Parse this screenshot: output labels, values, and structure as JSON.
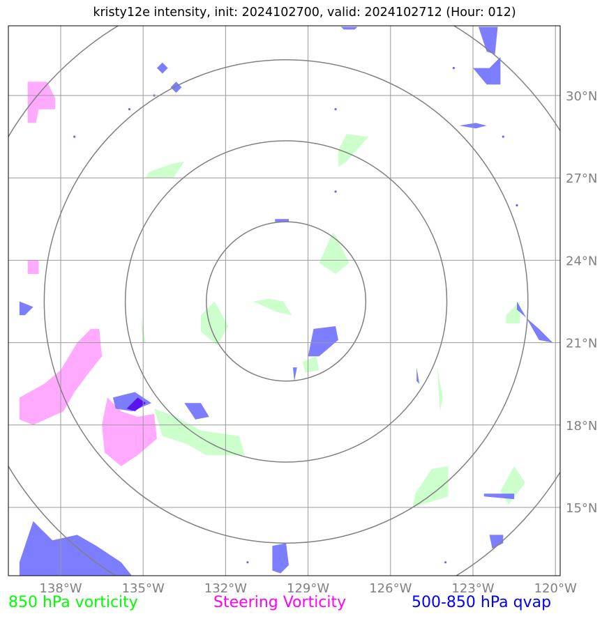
{
  "title": "kristy12e intensity, init: 2024102700, valid: 2024102712 (Hour: 012)",
  "colors": {
    "vorticity_850": "#ccffcc",
    "steering_vorticity": "#ffaaff",
    "qvap": "#6666ff",
    "qvap_dark": "#5500ee",
    "grid": "#999999",
    "range_ring": "#808080",
    "tick_label": "#808080"
  },
  "map": {
    "projection": "lat-lon",
    "lon_range": [
      -139.5,
      -120.0
    ],
    "lat_range": [
      12.5,
      32.5
    ],
    "gridlines": true,
    "lon_ticks": [
      {
        "value": -138,
        "label": "138°W"
      },
      {
        "value": -135,
        "label": "135°W"
      },
      {
        "value": -132,
        "label": "132°W"
      },
      {
        "value": -129,
        "label": "129°W"
      },
      {
        "value": -126,
        "label": "126°W"
      },
      {
        "value": -123,
        "label": "123°W"
      },
      {
        "value": -120,
        "label": "120°W"
      }
    ],
    "lat_ticks": [
      {
        "value": 30,
        "label": "30°N"
      },
      {
        "value": 27,
        "label": "27°N"
      },
      {
        "value": 24,
        "label": "24°N"
      },
      {
        "value": 21,
        "label": "21°N"
      },
      {
        "value": 18,
        "label": "18°N"
      },
      {
        "value": 15,
        "label": "15°N"
      }
    ],
    "storm_center": {
      "lon": -129.8,
      "lat": 22.5
    },
    "range_rings_deg": [
      2.9,
      5.85,
      8.8,
      11.75
    ],
    "vorticity_850_areas": [
      {
        "points": [
          [
            -134.8,
            27.2
          ],
          [
            -134.0,
            27.5
          ],
          [
            -133.5,
            27.6
          ],
          [
            -133.9,
            27.0
          ],
          [
            -134.9,
            27.0
          ]
        ]
      },
      {
        "points": [
          [
            -127.9,
            28.0
          ],
          [
            -127.6,
            28.6
          ],
          [
            -126.8,
            28.5
          ],
          [
            -127.6,
            27.6
          ],
          [
            -127.9,
            27.4
          ]
        ]
      },
      {
        "points": [
          [
            -128.6,
            23.9
          ],
          [
            -128.1,
            25.0
          ],
          [
            -128.0,
            24.9
          ],
          [
            -127.5,
            23.9
          ],
          [
            -128.0,
            23.5
          ]
        ]
      },
      {
        "points": [
          [
            -131.0,
            22.5
          ],
          [
            -130.4,
            22.6
          ],
          [
            -129.9,
            22.5
          ],
          [
            -129.6,
            22.0
          ],
          [
            -130.1,
            22.1
          ]
        ]
      },
      {
        "points": [
          [
            -132.9,
            22.0
          ],
          [
            -132.4,
            22.5
          ],
          [
            -131.9,
            21.6
          ],
          [
            -132.3,
            20.9
          ],
          [
            -132.9,
            21.4
          ]
        ]
      },
      {
        "points": [
          [
            -135.1,
            22.0
          ],
          [
            -135.0,
            21.0
          ],
          [
            -134.9,
            21.0
          ]
        ]
      },
      {
        "points": [
          [
            -129.2,
            20.3
          ],
          [
            -128.7,
            20.5
          ],
          [
            -128.6,
            20.0
          ],
          [
            -129.1,
            19.9
          ]
        ]
      },
      {
        "points": [
          [
            -134.6,
            18.6
          ],
          [
            -133.8,
            18.3
          ],
          [
            -132.9,
            17.8
          ],
          [
            -131.5,
            17.6
          ],
          [
            -131.3,
            16.9
          ],
          [
            -132.7,
            16.9
          ],
          [
            -133.4,
            17.3
          ],
          [
            -134.3,
            17.6
          ]
        ]
      },
      {
        "points": [
          [
            -124.3,
            20.1
          ],
          [
            -124.1,
            19.0
          ],
          [
            -124.2,
            18.5
          ]
        ]
      },
      {
        "points": [
          [
            -124.5,
            16.4
          ],
          [
            -123.9,
            16.5
          ],
          [
            -123.9,
            15.4
          ],
          [
            -125.2,
            15.0
          ],
          [
            -125.1,
            15.5
          ]
        ]
      },
      {
        "points": [
          [
            -122.0,
            15.6
          ],
          [
            -121.5,
            16.5
          ],
          [
            -121.1,
            15.9
          ],
          [
            -121.7,
            15.1
          ]
        ]
      },
      {
        "points": [
          [
            -121.8,
            22.0
          ],
          [
            -121.3,
            22.5
          ],
          [
            -121.3,
            21.7
          ],
          [
            -121.8,
            21.7
          ]
        ]
      }
    ],
    "steering_vorticity_areas": [
      {
        "points": [
          [
            -139.2,
            30.5
          ],
          [
            -138.5,
            30.5
          ],
          [
            -138.2,
            29.9
          ],
          [
            -138.2,
            29.5
          ],
          [
            -138.8,
            29.5
          ],
          [
            -138.9,
            29.0
          ],
          [
            -139.2,
            29.0
          ]
        ]
      },
      {
        "points": [
          [
            -139.2,
            24.0
          ],
          [
            -138.8,
            24.0
          ],
          [
            -138.8,
            23.5
          ],
          [
            -139.2,
            23.5
          ]
        ]
      },
      {
        "points": [
          [
            -139.5,
            19.0
          ],
          [
            -138.6,
            19.5
          ],
          [
            -138.0,
            20.0
          ],
          [
            -137.4,
            21.0
          ],
          [
            -136.9,
            21.5
          ],
          [
            -136.6,
            21.5
          ],
          [
            -136.5,
            20.5
          ],
          [
            -136.9,
            20.0
          ],
          [
            -137.5,
            19.2
          ],
          [
            -137.9,
            18.5
          ],
          [
            -139.0,
            18.0
          ],
          [
            -139.5,
            18.2
          ]
        ]
      },
      {
        "points": [
          [
            -136.3,
            19.0
          ],
          [
            -135.8,
            18.5
          ],
          [
            -135.2,
            18.3
          ],
          [
            -134.6,
            18.4
          ],
          [
            -134.5,
            17.5
          ],
          [
            -135.2,
            16.9
          ],
          [
            -135.8,
            16.5
          ],
          [
            -136.4,
            17.0
          ],
          [
            -136.5,
            18.0
          ]
        ]
      }
    ],
    "qvap_areas": [
      {
        "shade": "light",
        "points": [
          [
            -139.5,
            22.5
          ],
          [
            -139.0,
            22.3
          ],
          [
            -139.3,
            22.0
          ],
          [
            -139.5,
            22.0
          ]
        ]
      },
      {
        "shade": "light",
        "points": [
          [
            -128.8,
            21.5
          ],
          [
            -128.0,
            21.6
          ],
          [
            -127.9,
            21.1
          ],
          [
            -128.6,
            20.5
          ],
          [
            -129.0,
            20.5
          ]
        ]
      },
      {
        "shade": "light",
        "points": [
          [
            -136.1,
            19.0
          ],
          [
            -135.3,
            19.2
          ],
          [
            -134.7,
            18.8
          ],
          [
            -135.4,
            18.5
          ],
          [
            -136.0,
            18.6
          ]
        ]
      },
      {
        "shade": "dark",
        "points": [
          [
            -135.6,
            18.6
          ],
          [
            -135.2,
            19.0
          ],
          [
            -134.9,
            18.8
          ],
          [
            -135.3,
            18.5
          ]
        ]
      },
      {
        "shade": "light",
        "points": [
          [
            -133.5,
            18.8
          ],
          [
            -132.9,
            18.8
          ],
          [
            -132.6,
            18.3
          ],
          [
            -133.1,
            18.2
          ]
        ]
      },
      {
        "shade": "light",
        "points": [
          [
            -129.55,
            20.1
          ],
          [
            -129.4,
            20.1
          ],
          [
            -129.5,
            19.6
          ]
        ]
      },
      {
        "shade": "light",
        "points": [
          [
            -125.05,
            20.1
          ],
          [
            -124.95,
            19.5
          ],
          [
            -125.05,
            19.6
          ]
        ]
      },
      {
        "shade": "light",
        "points": [
          [
            -121.4,
            22.5
          ],
          [
            -120.6,
            21.1
          ],
          [
            -120.1,
            21.0
          ],
          [
            -120.6,
            21.5
          ],
          [
            -121.4,
            22.2
          ]
        ]
      },
      {
        "shade": "light",
        "points": [
          [
            -122.8,
            32.5
          ],
          [
            -122.1,
            32.5
          ],
          [
            -122.2,
            31.5
          ],
          [
            -122.5,
            31.6
          ]
        ]
      },
      {
        "shade": "light",
        "points": [
          [
            -123.0,
            31.0
          ],
          [
            -122.4,
            31.0
          ],
          [
            -122.0,
            31.4
          ],
          [
            -122.0,
            30.4
          ],
          [
            -122.5,
            30.4
          ]
        ]
      },
      {
        "shade": "light",
        "points": [
          [
            -123.5,
            28.9
          ],
          [
            -122.9,
            29.0
          ],
          [
            -122.5,
            28.9
          ],
          [
            -122.9,
            28.8
          ]
        ]
      },
      {
        "shade": "light",
        "points": [
          [
            -130.2,
            25.5
          ],
          [
            -129.7,
            25.5
          ],
          [
            -129.7,
            25.4
          ],
          [
            -130.2,
            25.4
          ]
        ]
      },
      {
        "shade": "light",
        "points": [
          [
            -127.8,
            32.5
          ],
          [
            -127.2,
            32.5
          ],
          [
            -127.3,
            32.4
          ],
          [
            -127.7,
            32.4
          ]
        ]
      },
      {
        "shade": "light",
        "points": [
          [
            -139.0,
            14.5
          ],
          [
            -138.3,
            13.8
          ],
          [
            -137.4,
            14.0
          ],
          [
            -136.7,
            13.6
          ],
          [
            -135.8,
            13.0
          ],
          [
            -135.4,
            12.5
          ],
          [
            -139.5,
            12.5
          ],
          [
            -139.5,
            13.0
          ]
        ]
      },
      {
        "shade": "light",
        "points": [
          [
            -130.3,
            13.6
          ],
          [
            -129.8,
            13.7
          ],
          [
            -129.7,
            12.9
          ],
          [
            -130.0,
            12.6
          ],
          [
            -130.3,
            12.7
          ]
        ]
      },
      {
        "shade": "light",
        "points": [
          [
            -122.6,
            15.5
          ],
          [
            -121.5,
            15.5
          ],
          [
            -121.5,
            15.3
          ],
          [
            -122.6,
            15.4
          ]
        ]
      },
      {
        "shade": "light",
        "points": [
          [
            -122.4,
            14.0
          ],
          [
            -121.9,
            14.0
          ],
          [
            -121.9,
            13.7
          ],
          [
            -122.3,
            13.5
          ]
        ]
      },
      {
        "shade": "light",
        "points": [
          [
            -134.5,
            31.0
          ],
          [
            -134.3,
            31.2
          ],
          [
            -134.1,
            31.0
          ],
          [
            -134.3,
            30.8
          ]
        ]
      },
      {
        "shade": "light",
        "points": [
          [
            -134.0,
            30.3
          ],
          [
            -133.8,
            30.5
          ],
          [
            -133.6,
            30.3
          ],
          [
            -133.8,
            30.1
          ]
        ]
      }
    ],
    "qvap_dots": [
      [
        -128.0,
        29.5
      ],
      [
        -128.0,
        26.5
      ],
      [
        -121.9,
        28.5
      ],
      [
        -137.5,
        28.5
      ],
      [
        -135.5,
        29.5
      ],
      [
        -134.6,
        30.0
      ],
      [
        -124.0,
        13.0
      ],
      [
        -131.2,
        13.0
      ],
      [
        -123.7,
        31.0
      ],
      [
        -121.4,
        26.0
      ]
    ]
  },
  "legend": {
    "item1": "850 hPa vorticity",
    "item2": "Steering Vorticity",
    "item3": "500-850 hPa qvap"
  }
}
